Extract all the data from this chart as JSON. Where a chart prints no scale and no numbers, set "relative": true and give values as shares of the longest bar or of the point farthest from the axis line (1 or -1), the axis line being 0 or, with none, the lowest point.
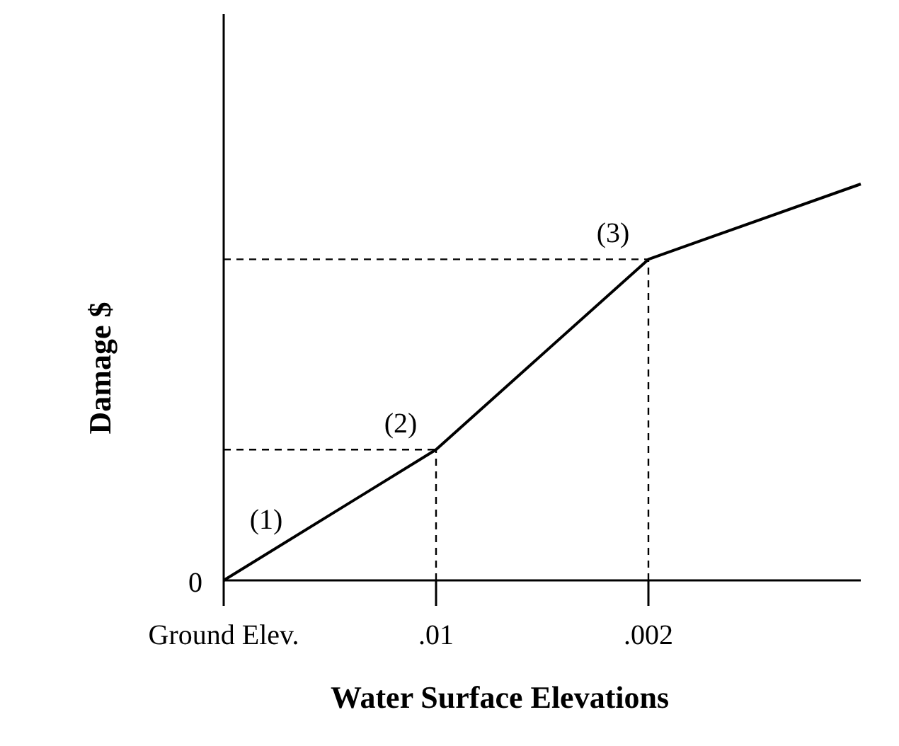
{
  "chart_data": {
    "type": "line",
    "relative": true,
    "xlabel": "Water Surface Elevations",
    "ylabel": "Damage $",
    "categories": [
      "Ground Elev.",
      ".01",
      ".002",
      null
    ],
    "series": [
      {
        "color": "#000000",
        "values": [
          0,
          0.33,
          0.81,
          1
        ]
      }
    ],
    "marker": "none",
    "line_style": "solid",
    "ref_lines": [
      {
        "axis": "y",
        "value": 0.33,
        "line_style": "dashed"
      },
      {
        "axis": "y",
        "value": 0.81,
        "line_style": "dashed"
      },
      {
        "axis": "x",
        "value": ".01",
        "line_style": "dashed"
      },
      {
        "axis": "x",
        "value": ".002",
        "line_style": "dashed"
      }
    ],
    "annotations": [
      {
        "text": "0",
        "x": "Ground Elev.",
        "y": 0
      },
      "(1)",
      {
        "text": "(2)",
        "x": ".01",
        "y": 0.33
      },
      {
        "text": "(3)",
        "x": ".002",
        "y": 0.81
      }
    ]
  }
}
